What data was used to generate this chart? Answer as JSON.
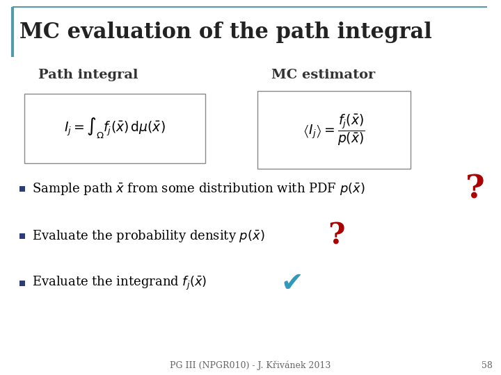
{
  "title": "MC evaluation of the path integral",
  "title_fontsize": 22,
  "title_color": "#222222",
  "background_color": "#ffffff",
  "left_label": "Path integral",
  "right_label": "MC estimator",
  "label_fontsize": 14,
  "label_color": "#333333",
  "bullet_color": "#2c3e7a",
  "bullet_items_plain": [
    "Sample path ",
    " from some distribution with PDF ",
    "Evaluate the probability density ",
    "Evaluate the integrand "
  ],
  "bullet_fontsize": 13,
  "question_mark": "?",
  "checkmark": "✔",
  "question_color": "#aa0000",
  "check_color": "#3399bb",
  "footer_text": "PG III (NPGR010) - J. Křivánek 2013",
  "footer_page": "58",
  "footer_fontsize": 9,
  "footer_color": "#666666",
  "box_edgecolor": "#888888",
  "accent_color": "#5599aa",
  "left_line_color": "#5599aa",
  "top_line_color": "#5599aa"
}
